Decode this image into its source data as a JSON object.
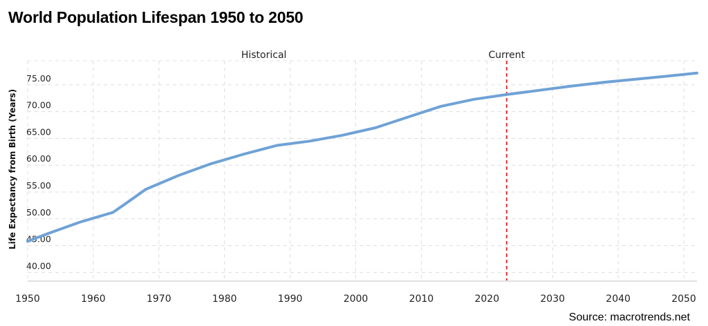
{
  "header": {
    "title": "World Population Lifespan 1950 to 2050"
  },
  "footer": {
    "source": "Source: macrotrends.net"
  },
  "chart_data": {
    "type": "line",
    "title": "World Population Lifespan 1950 to 2050",
    "xlabel": "",
    "ylabel": "Life Expectancy from Birth (Years)",
    "xlim": [
      1950,
      2052
    ],
    "ylim": [
      38.5,
      79.5
    ],
    "x_ticks": [
      "1950",
      "1960",
      "1970",
      "1980",
      "1990",
      "2000",
      "2010",
      "2020",
      "2030",
      "2040",
      "2050"
    ],
    "y_ticks": [
      "40.00",
      "45.00",
      "50.00",
      "55.00",
      "60.00",
      "65.00",
      "70.00",
      "75.00"
    ],
    "grid": true,
    "series_color": "#6fa2d6",
    "current_line": {
      "x": 2023,
      "color": "#dd3333"
    },
    "annotations": [
      {
        "text": "Historical",
        "x": 1986
      },
      {
        "text": "Current",
        "x": 2023
      }
    ],
    "series": [
      {
        "x": [
          1950,
          1953,
          1958,
          1963,
          1965,
          1968,
          1973,
          1978,
          1983,
          1988,
          1993,
          1998,
          2003,
          2008,
          2013,
          2018,
          2023,
          2028,
          2033,
          2038,
          2043,
          2048,
          2052
        ],
        "values": [
          45.8,
          47.2,
          49.4,
          51.2,
          52.9,
          55.5,
          58.1,
          60.3,
          62.1,
          63.7,
          64.5,
          65.6,
          67.0,
          69.0,
          71.0,
          72.3,
          73.2,
          74.0,
          74.8,
          75.5,
          76.1,
          76.7,
          77.2
        ]
      }
    ]
  }
}
